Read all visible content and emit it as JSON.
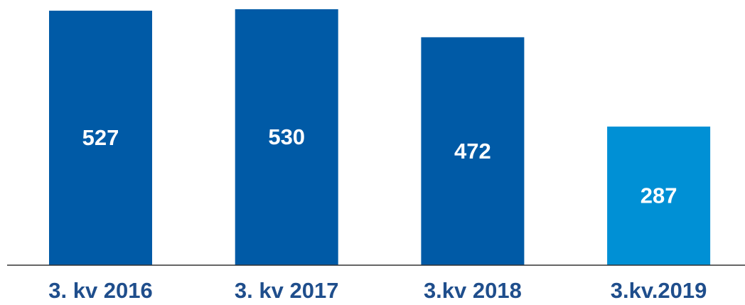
{
  "chart_data": {
    "type": "bar",
    "categories": [
      "3. kv 2016",
      "3. kv 2017",
      "3.kv 2018",
      "3.kv.2019"
    ],
    "values": [
      527,
      530,
      472,
      287
    ],
    "colors": [
      "#005aa6",
      "#005aa6",
      "#005aa6",
      "#0090d5"
    ],
    "ylim": [
      0,
      530
    ]
  }
}
